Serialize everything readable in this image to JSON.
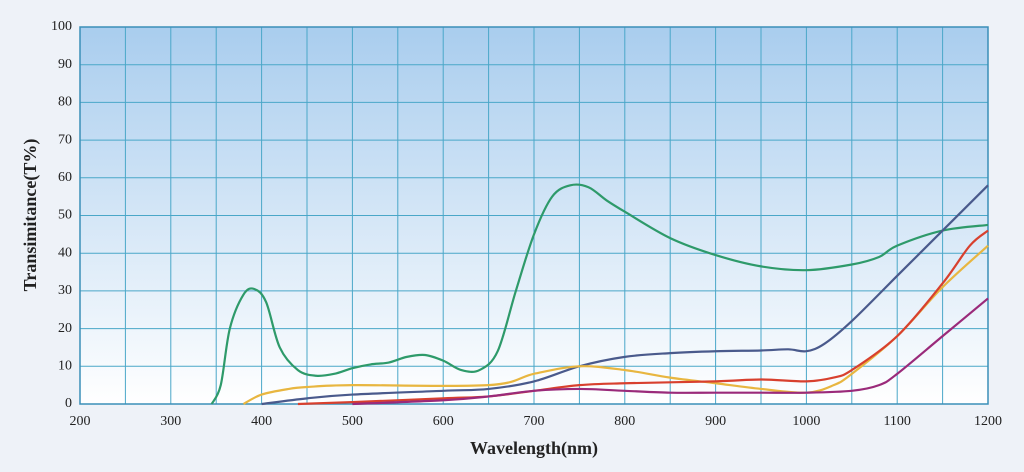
{
  "chart_data": {
    "type": "line",
    "xlabel": "Wavelength(nm)",
    "ylabel": "Transimitance(T%)",
    "xlim": [
      200,
      1200
    ],
    "ylim": [
      0,
      100
    ],
    "xticks": [
      200,
      300,
      400,
      500,
      600,
      700,
      800,
      900,
      1000,
      1100,
      1200
    ],
    "xminorticks": [
      250,
      350,
      450,
      550,
      650,
      750,
      850,
      950,
      1050,
      1150
    ],
    "yticks": [
      0,
      10,
      20,
      30,
      40,
      50,
      60,
      70,
      80,
      90,
      100
    ],
    "grid": true,
    "series": [
      {
        "color": "#2e9a6a",
        "x": [
          345,
          355,
          365,
          380,
          392,
          405,
          420,
          440,
          460,
          480,
          500,
          520,
          540,
          560,
          580,
          600,
          620,
          640,
          660,
          680,
          700,
          720,
          740,
          760,
          780,
          800,
          850,
          900,
          950,
          1000,
          1050,
          1080,
          1100,
          1150,
          1200
        ],
        "values": [
          0,
          5,
          20,
          29,
          30.5,
          27,
          15,
          9,
          7.5,
          8,
          9.5,
          10.5,
          11,
          12.5,
          13,
          11.5,
          9,
          9,
          14,
          30,
          45,
          55,
          58,
          57.5,
          54,
          51,
          44,
          39.5,
          36.5,
          35.5,
          37,
          39,
          42,
          46,
          47.5
        ]
      },
      {
        "color": "#4a5a8c",
        "x": [
          400,
          450,
          500,
          600,
          650,
          700,
          750,
          800,
          850,
          900,
          950,
          980,
          1000,
          1020,
          1050,
          1100,
          1150,
          1200
        ],
        "values": [
          0,
          1.5,
          2.5,
          3.5,
          4,
          6,
          10,
          12.5,
          13.5,
          14,
          14.2,
          14.5,
          14,
          16,
          22,
          34,
          46,
          58
        ]
      },
      {
        "color": "#e8b640",
        "x": [
          380,
          400,
          430,
          450,
          500,
          650,
          700,
          750,
          800,
          850,
          900,
          950,
          1000,
          1030,
          1050,
          1100,
          1150,
          1200
        ],
        "values": [
          0,
          2.5,
          4,
          4.5,
          5,
          5,
          8,
          10,
          9,
          7,
          5.5,
          4,
          3,
          5,
          8,
          18,
          31,
          42
        ]
      },
      {
        "color": "#d8402e",
        "x": [
          440,
          500,
          600,
          650,
          700,
          750,
          800,
          900,
          950,
          1000,
          1030,
          1050,
          1100,
          1150,
          1180,
          1200
        ],
        "values": [
          0,
          0.5,
          1.5,
          2,
          3.5,
          5,
          5.5,
          6,
          6.5,
          6,
          7,
          9,
          18,
          32,
          42,
          46
        ]
      },
      {
        "color": "#9a2a7a",
        "x": [
          500,
          600,
          650,
          700,
          750,
          800,
          850,
          900,
          950,
          1000,
          1050,
          1080,
          1100,
          1150,
          1200
        ],
        "values": [
          0,
          1,
          2,
          3.5,
          4,
          3.5,
          3,
          3,
          3,
          3,
          3.5,
          5,
          8,
          18,
          28
        ]
      }
    ]
  }
}
